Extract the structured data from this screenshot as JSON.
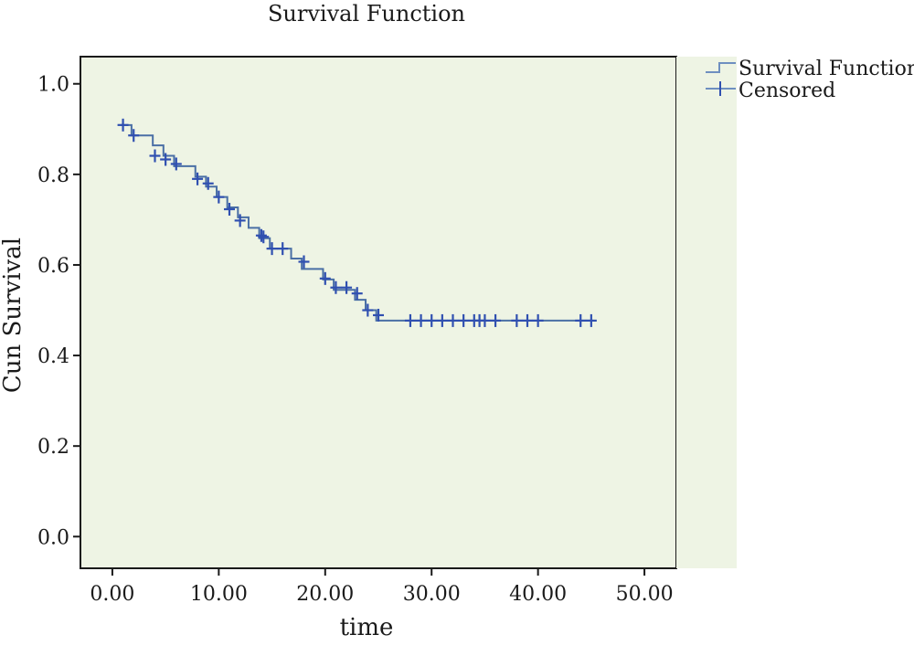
{
  "chart_data": {
    "type": "line",
    "title": "Survival Function",
    "xlabel": "time",
    "ylabel": "Cun Survival",
    "xlim": [
      -3,
      53
    ],
    "ylim": [
      -0.07,
      1.06
    ],
    "x_ticks": [
      0,
      10,
      20,
      30,
      40,
      50
    ],
    "x_tick_labels": [
      "0.00",
      "10.00",
      "20.00",
      "30.00",
      "40.00",
      "50.00"
    ],
    "y_ticks": [
      0,
      0.2,
      0.4,
      0.6,
      0.8,
      1.0
    ],
    "y_tick_labels": [
      "0.0",
      "0.2",
      "0.4",
      "0.6",
      "0.8",
      "1.0"
    ],
    "grid": false,
    "legend_position": "right",
    "legend": [
      "Survival Function",
      "Censored"
    ],
    "background_color": "#eef4e4",
    "series": [
      {
        "name": "Survival Function",
        "color": "#4a6fa5",
        "step": [
          [
            0.8,
            0.909
          ],
          [
            1.8,
            0.886
          ],
          [
            3.8,
            0.864
          ],
          [
            4.8,
            0.841
          ],
          [
            5.8,
            0.818
          ],
          [
            7.8,
            0.795
          ],
          [
            8.8,
            0.773
          ],
          [
            9.8,
            0.75
          ],
          [
            10.8,
            0.727
          ],
          [
            11.8,
            0.705
          ],
          [
            12.8,
            0.682
          ],
          [
            13.8,
            0.659
          ],
          [
            14.8,
            0.636
          ],
          [
            16.8,
            0.614
          ],
          [
            17.8,
            0.591
          ],
          [
            19.8,
            0.568
          ],
          [
            20.8,
            0.545
          ],
          [
            22.8,
            0.523
          ],
          [
            23.8,
            0.5
          ],
          [
            24.8,
            0.477
          ],
          [
            45.2,
            0.477
          ]
        ]
      },
      {
        "name": "Censored",
        "color": "#3050b0",
        "points": [
          [
            1.0,
            0.909
          ],
          [
            2.0,
            0.886
          ],
          [
            4.0,
            0.841
          ],
          [
            5.0,
            0.833
          ],
          [
            6.0,
            0.823
          ],
          [
            8.0,
            0.79
          ],
          [
            9.0,
            0.78
          ],
          [
            10.0,
            0.75
          ],
          [
            11.0,
            0.723
          ],
          [
            12.0,
            0.698
          ],
          [
            14.0,
            0.665
          ],
          [
            14.2,
            0.662
          ],
          [
            15.0,
            0.636
          ],
          [
            16.0,
            0.636
          ],
          [
            18.0,
            0.607
          ],
          [
            20.0,
            0.57
          ],
          [
            21.0,
            0.55
          ],
          [
            22.0,
            0.55
          ],
          [
            23.0,
            0.537
          ],
          [
            24.0,
            0.5
          ],
          [
            25.0,
            0.489
          ],
          [
            28.0,
            0.477
          ],
          [
            29.0,
            0.477
          ],
          [
            30.0,
            0.477
          ],
          [
            31.0,
            0.477
          ],
          [
            32.0,
            0.477
          ],
          [
            33.0,
            0.477
          ],
          [
            34.0,
            0.477
          ],
          [
            34.5,
            0.477
          ],
          [
            35.0,
            0.477
          ],
          [
            36.0,
            0.477
          ],
          [
            38.0,
            0.477
          ],
          [
            39.0,
            0.477
          ],
          [
            40.0,
            0.477
          ],
          [
            44.0,
            0.477
          ],
          [
            45.0,
            0.477
          ]
        ]
      }
    ]
  }
}
